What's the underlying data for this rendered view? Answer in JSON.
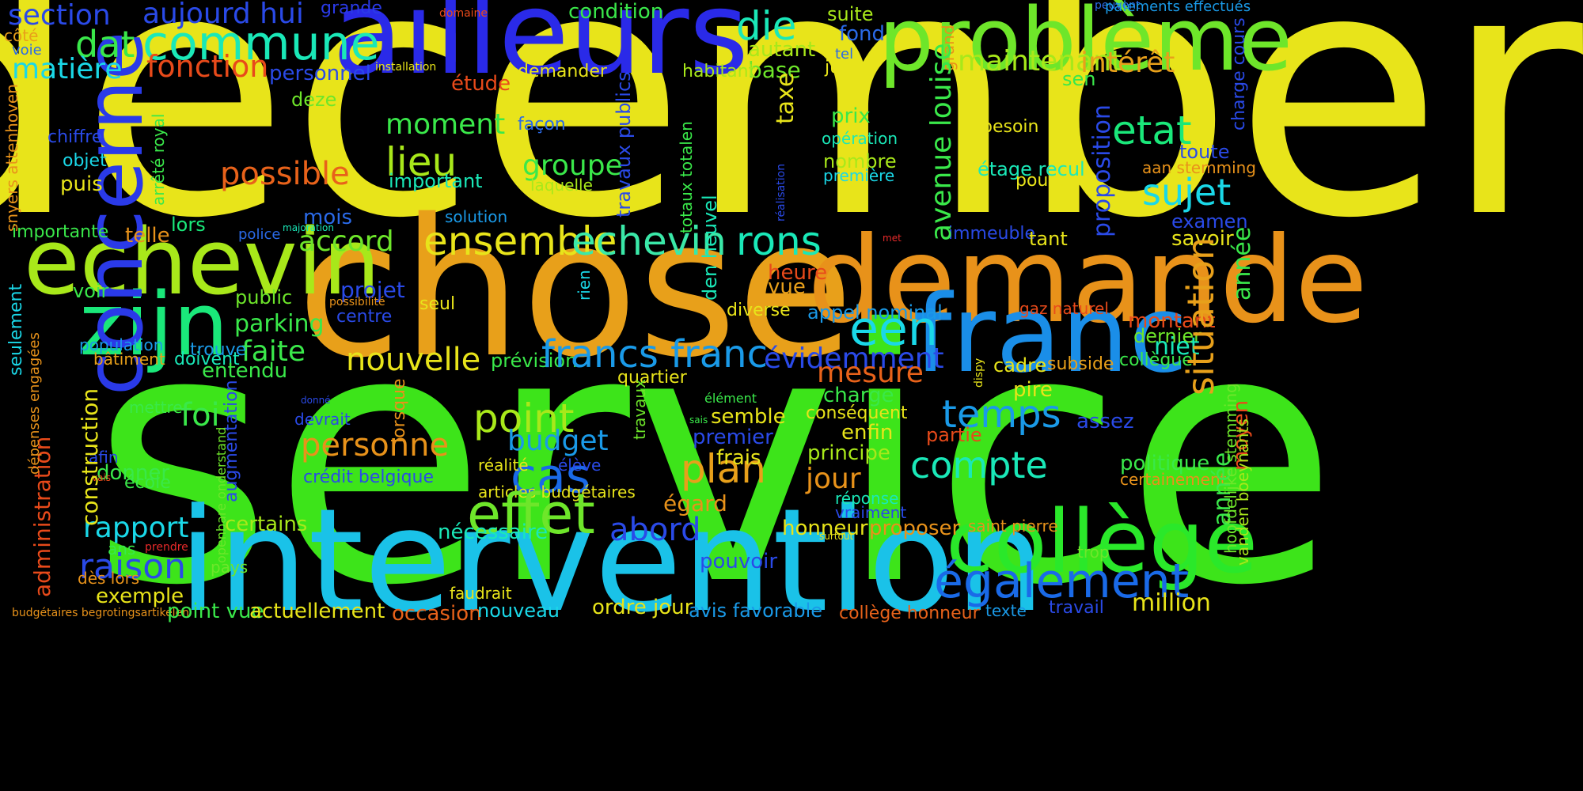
{
  "words": [
    {
      "text": "december",
      "color": "#e8e41a"
    },
    {
      "text": "service",
      "color": "#3de41a"
    },
    {
      "text": "chose",
      "color": "#e8a01a"
    },
    {
      "text": "ailleurs",
      "color": "#2a2ae8"
    },
    {
      "text": "problème",
      "color": "#6ee62a"
    },
    {
      "text": "demande",
      "color": "#e8921a"
    },
    {
      "text": "intervention",
      "color": "#1ac2e8"
    },
    {
      "text": "franc",
      "color": "#1a8ee8"
    },
    {
      "text": "collège",
      "color": "#2ae82a"
    },
    {
      "text": "echevin",
      "color": "#a8e81a"
    },
    {
      "text": "zijn",
      "color": "#1ae87a"
    },
    {
      "text": "concerne",
      "color": "#2a3ae8"
    },
    {
      "text": "commune",
      "color": "#1ae8b8"
    },
    {
      "text": "section",
      "color": "#2a4ae8"
    },
    {
      "text": "aujourd hui",
      "color": "#2a4ae8"
    },
    {
      "text": "grande",
      "color": "#2a3ae8"
    },
    {
      "text": "domaine",
      "color": "#e84a1a"
    },
    {
      "text": "condition",
      "color": "#3ae84a"
    },
    {
      "text": "suite",
      "color": "#a8e81a"
    },
    {
      "text": "peuvent",
      "color": "#2a6ae8"
    },
    {
      "text": "paiements effectués",
      "color": "#1a9ae8"
    },
    {
      "text": "dat",
      "color": "#3ae84a"
    },
    {
      "text": "matière",
      "color": "#1ad8e8"
    },
    {
      "text": "fonction",
      "color": "#e84a1a"
    },
    {
      "text": "côté",
      "color": "#e8a01a"
    },
    {
      "text": "voie",
      "color": "#2a6ae8"
    },
    {
      "text": "die",
      "color": "#1ae8b8"
    },
    {
      "text": "fond",
      "color": "#2a6ae8"
    },
    {
      "text": "tel",
      "color": "#2a6ae8"
    },
    {
      "text": "juni",
      "color": "#e8e41a"
    },
    {
      "text": "autant",
      "color": "#a8e81a"
    },
    {
      "text": "base",
      "color": "#6ee62a"
    },
    {
      "text": "habitant",
      "color": "#a8e81a"
    },
    {
      "text": "demander",
      "color": "#e8e41a"
    },
    {
      "text": "installation",
      "color": "#e8e41a"
    },
    {
      "text": "personnel",
      "color": "#2a4ae8"
    },
    {
      "text": "étude",
      "color": "#e84a1a"
    },
    {
      "text": "maintenant",
      "color": "#a8e81a"
    },
    {
      "text": "intérêt",
      "color": "#e8a01a"
    },
    {
      "text": "sen",
      "color": "#3ae84a"
    },
    {
      "text": "grand",
      "color": "#e8921a"
    },
    {
      "text": "deze",
      "color": "#6ee62a"
    },
    {
      "text": "moment",
      "color": "#3ae84a"
    },
    {
      "text": "façon",
      "color": "#2a6ae8"
    },
    {
      "text": "taxe",
      "color": "#e8e41a"
    },
    {
      "text": "prix",
      "color": "#3ae84a"
    },
    {
      "text": "opération",
      "color": "#1ae8b8"
    },
    {
      "text": "besoin",
      "color": "#e8e41a"
    },
    {
      "text": "etat",
      "color": "#1ae87a"
    },
    {
      "text": "toute",
      "color": "#2a4ae8"
    },
    {
      "text": "chiffre",
      "color": "#2a4ae8"
    },
    {
      "text": "objet",
      "color": "#1ad8e8"
    },
    {
      "text": "puis",
      "color": "#e8e41a"
    },
    {
      "text": "lieu",
      "color": "#a8e81a"
    },
    {
      "text": "groupe",
      "color": "#3ae84a"
    },
    {
      "text": "important",
      "color": "#1ae8b8"
    },
    {
      "text": "laquelle",
      "color": "#a8e81a"
    },
    {
      "text": "nombre",
      "color": "#a8e81a"
    },
    {
      "text": "première",
      "color": "#1ad8e8"
    },
    {
      "text": "étage recul",
      "color": "#1ae8b8"
    },
    {
      "text": "pourquoi",
      "color": "#e8e41a"
    },
    {
      "text": "sujet",
      "color": "#1ad8e8"
    },
    {
      "text": "aan stemming",
      "color": "#e8921a"
    },
    {
      "text": "possible",
      "color": "#e8621a"
    },
    {
      "text": "mois",
      "color": "#2a6ae8"
    },
    {
      "text": "solution",
      "color": "#1a9ae8"
    },
    {
      "text": "examen",
      "color": "#2a4ae8"
    },
    {
      "text": "savoir",
      "color": "#e8e41a"
    },
    {
      "text": "importante",
      "color": "#3ae84a"
    },
    {
      "text": "lors",
      "color": "#1ae87a"
    },
    {
      "text": "majoration",
      "color": "#1ae8b8"
    },
    {
      "text": "telle",
      "color": "#e8921a"
    },
    {
      "text": "police",
      "color": "#2a6ae8"
    },
    {
      "text": "accord",
      "color": "#6ee62a"
    },
    {
      "text": "ensemble",
      "color": "#e8e41a"
    },
    {
      "text": "echevin",
      "color": "#3ae8a8"
    },
    {
      "text": "rons",
      "color": "#1ae8b8"
    },
    {
      "text": "immeuble",
      "color": "#2a4ae8"
    },
    {
      "text": "tant",
      "color": "#e8e41a"
    },
    {
      "text": "met",
      "color": "#e82a2a"
    },
    {
      "text": "heure",
      "color": "#e84a1a"
    },
    {
      "text": "vue",
      "color": "#e8a01a"
    },
    {
      "text": "projet",
      "color": "#2a4ae8"
    },
    {
      "text": "possibilité",
      "color": "#e8921a"
    },
    {
      "text": "seul",
      "color": "#e8e41a"
    },
    {
      "text": "voir",
      "color": "#3ae84a"
    },
    {
      "text": "public",
      "color": "#6ee62a"
    },
    {
      "text": "centre",
      "color": "#2a4ae8"
    },
    {
      "text": "population",
      "color": "#1a9ae8"
    },
    {
      "text": "parking",
      "color": "#3ae84a"
    },
    {
      "text": "diverse",
      "color": "#e8e41a"
    },
    {
      "text": "appel nominal",
      "color": "#1a9ae8"
    },
    {
      "text": "gaz naturel",
      "color": "#e84a1a"
    },
    {
      "text": "montant",
      "color": "#e84a1a"
    },
    {
      "text": "dernier",
      "color": "#6ee62a"
    },
    {
      "text": "niet",
      "color": "#1ae8b8"
    },
    {
      "text": "een",
      "color": "#1ad8e8"
    },
    {
      "text": "faite",
      "color": "#3ae84a"
    },
    {
      "text": "trouve",
      "color": "#1a9ae8"
    },
    {
      "text": "doivent",
      "color": "#1ae8b8"
    },
    {
      "text": "entendu",
      "color": "#3ae84a"
    },
    {
      "text": "bâtiment",
      "color": "#e8a01a"
    },
    {
      "text": "nouvelle",
      "color": "#e8e41a"
    },
    {
      "text": "prévision",
      "color": "#3ae84a"
    },
    {
      "text": "francs franc",
      "color": "#1a9ae8"
    },
    {
      "text": "évidemment",
      "color": "#2a4ae8"
    },
    {
      "text": "mesure",
      "color": "#e8621a"
    },
    {
      "text": "charge",
      "color": "#3ae84a"
    },
    {
      "text": "cadre",
      "color": "#e8e41a"
    },
    {
      "text": "subside",
      "color": "#e8a01a"
    },
    {
      "text": "collègue",
      "color": "#3ae84a"
    },
    {
      "text": "pire",
      "color": "#e8e41a"
    },
    {
      "text": "quartier",
      "color": "#e8e41a"
    },
    {
      "text": "mettre",
      "color": "#3ae84a"
    },
    {
      "text": "foi",
      "color": "#3ae84a"
    },
    {
      "text": "point",
      "color": "#a8e81a"
    },
    {
      "text": "élément",
      "color": "#3ae84a"
    },
    {
      "text": "sais",
      "color": "#3ae84a"
    },
    {
      "text": "semble",
      "color": "#e8e41a"
    },
    {
      "text": "conséquent",
      "color": "#e8e41a"
    },
    {
      "text": "temps",
      "color": "#1a9ae8"
    },
    {
      "text": "assez",
      "color": "#2a4ae8"
    },
    {
      "text": "budget",
      "color": "#1a9ae8"
    },
    {
      "text": "premier",
      "color": "#2a4ae8"
    },
    {
      "text": "enfin",
      "color": "#e8e41a"
    },
    {
      "text": "partie",
      "color": "#e84a1a"
    },
    {
      "text": "donné",
      "color": "#2a4ae8"
    },
    {
      "text": "devrait",
      "color": "#2a4ae8"
    },
    {
      "text": "afin",
      "color": "#2a4ae8"
    },
    {
      "text": "donner",
      "color": "#3ae84a"
    },
    {
      "text": "vais",
      "color": "#e84a1a"
    },
    {
      "text": "école",
      "color": "#3ae84a"
    },
    {
      "text": "personne",
      "color": "#e8921a"
    },
    {
      "text": "crédit belgique",
      "color": "#2a4ae8"
    },
    {
      "text": "cas",
      "color": "#1a6ae8"
    },
    {
      "text": "réalité",
      "color": "#e8e41a"
    },
    {
      "text": "élève",
      "color": "#2a4ae8"
    },
    {
      "text": "plan",
      "color": "#e8a01a"
    },
    {
      "text": "frais",
      "color": "#e8e41a"
    },
    {
      "text": "compte",
      "color": "#1ae8b8"
    },
    {
      "text": "principe",
      "color": "#a8e81a"
    },
    {
      "text": "politique",
      "color": "#3ae84a"
    },
    {
      "text": "certainement",
      "color": "#e8921a"
    },
    {
      "text": "jour",
      "color": "#e8921a"
    },
    {
      "text": "articles budgétaires",
      "color": "#e8e41a"
    },
    {
      "text": "effet",
      "color": "#6ee62a"
    },
    {
      "text": "égard",
      "color": "#e8921a"
    },
    {
      "text": "réponse",
      "color": "#1ae8b8"
    },
    {
      "text": "vraiment",
      "color": "#2a4ae8"
    },
    {
      "text": "rapport",
      "color": "#1ad8e8"
    },
    {
      "text": "certains",
      "color": "#a8e81a"
    },
    {
      "text": "abord",
      "color": "#2a4ae8"
    },
    {
      "text": "nécessaire",
      "color": "#1ae8b8"
    },
    {
      "text": "honneur",
      "color": "#e8e41a"
    },
    {
      "text": "proposer",
      "color": "#e8921a"
    },
    {
      "text": "saint pierre",
      "color": "#e8921a"
    },
    {
      "text": "surtout",
      "color": "#e8e41a"
    },
    {
      "text": "ans",
      "color": "#3ae84a"
    },
    {
      "text": "prendre",
      "color": "#e82a2a"
    },
    {
      "text": "raison",
      "color": "#2a4ae8"
    },
    {
      "text": "pays",
      "color": "#6ee62a"
    },
    {
      "text": "pouvoir",
      "color": "#2a4ae8"
    },
    {
      "text": "trop",
      "color": "#6ee62a"
    },
    {
      "text": "dès lors",
      "color": "#e8921a"
    },
    {
      "text": "exemple",
      "color": "#e8e41a"
    },
    {
      "text": "faudrait",
      "color": "#e8e41a"
    },
    {
      "text": "également",
      "color": "#1a6ae8"
    },
    {
      "text": "budgétaires begrotingsartikelen",
      "color": "#e8921a"
    },
    {
      "text": "point vue",
      "color": "#3ae84a"
    },
    {
      "text": "actuellement",
      "color": "#e8e41a"
    },
    {
      "text": "occasion",
      "color": "#e8621a"
    },
    {
      "text": "nouveau",
      "color": "#1ad8e8"
    },
    {
      "text": "ordre jour",
      "color": "#e8e41a"
    },
    {
      "text": "avis favorable",
      "color": "#1a9ae8"
    },
    {
      "text": "collège honneur",
      "color": "#e8621a"
    },
    {
      "text": "texte",
      "color": "#1a9ae8"
    },
    {
      "text": "travail",
      "color": "#2a4ae8"
    },
    {
      "text": "million",
      "color": "#e8e41a"
    },
    {
      "text": "snyers attenhoven",
      "color": "#e8921a"
    },
    {
      "text": "arrêté royal",
      "color": "#3ae84a"
    },
    {
      "text": "travaux publics",
      "color": "#2a4ae8"
    },
    {
      "text": "totaux totalen",
      "color": "#3ae84a"
    },
    {
      "text": "réalisation",
      "color": "#2a4ae8"
    },
    {
      "text": "den heuvel",
      "color": "#1ae8b8"
    },
    {
      "text": "avenue louise",
      "color": "#3ae84a"
    },
    {
      "text": "proposition",
      "color": "#2a4ae8"
    },
    {
      "text": "rien",
      "color": "#1ad8e8"
    },
    {
      "text": "lorsque",
      "color": "#e8921a"
    },
    {
      "text": "travaux",
      "color": "#6ee62a"
    },
    {
      "text": "situation",
      "color": "#e8a01a"
    },
    {
      "text": "année",
      "color": "#3ae84a"
    },
    {
      "text": "année",
      "color": "#3ae84a"
    },
    {
      "text": "moyen",
      "color": "#e84a1a"
    },
    {
      "text": "dispy",
      "color": "#e8e41a"
    },
    {
      "text": "charge cours",
      "color": "#2a4ae8"
    },
    {
      "text": "hoofdelijke stemming",
      "color": "#6ee62a"
    },
    {
      "text": "vanden boeynants",
      "color": "#a8e81a"
    },
    {
      "text": "administration",
      "color": "#e84a1a"
    },
    {
      "text": "dépenses engagées",
      "color": "#e8921a"
    },
    {
      "text": "seulement",
      "color": "#1ad8e8"
    },
    {
      "text": "construction",
      "color": "#e8e41a"
    },
    {
      "text": "augmentation",
      "color": "#2a4ae8"
    },
    {
      "text": "openbare onderstand",
      "color": "#6ee62a"
    }
  ]
}
